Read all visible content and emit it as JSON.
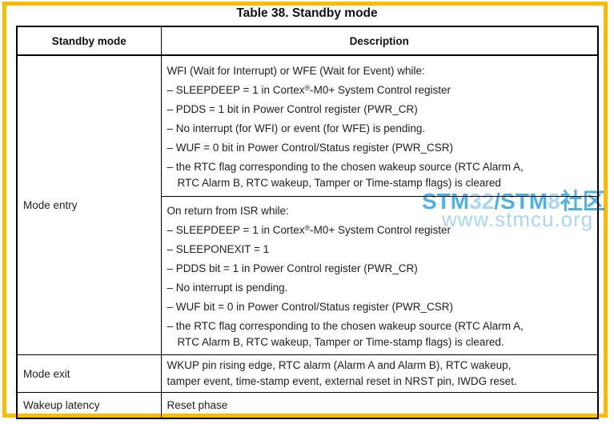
{
  "page": {
    "title": "Table 38. Standby mode",
    "frame_color": "#FDBB00",
    "watermark": {
      "seg1": "STM",
      "seg2": "32",
      "seg3": "/",
      "seg4": "STM",
      "seg5": "8",
      "seg6": "社区",
      "line2": "www.stmcu.org",
      "color_strong": "#4FB1E6",
      "color_light": "#A9D6F0"
    }
  },
  "table": {
    "header": {
      "col1": "Standby mode",
      "col2": "Description"
    },
    "mode_entry": {
      "label": "Mode entry",
      "block1": {
        "intro": "WFI (Wait for Interrupt) or WFE (Wait for Event) while:",
        "item1": {
          "pre": "– SLEEPDEEP = 1 in Cortex",
          "sup": "®",
          "post": "-M0+ System Control register"
        },
        "item2": "– PDDS = 1 bit in Power Control register (PWR_CR)",
        "item3": "– No interrupt (for WFI) or event (for WFE) is pending.",
        "item4": "– WUF = 0 bit in Power Control/Status register (PWR_CSR)",
        "item5_line1": "– the RTC flag corresponding to the chosen wakeup source (RTC Alarm A,",
        "item5_line2": "RTC Alarm B, RTC wakeup, Tamper or Time-stamp flags) is cleared"
      },
      "block2": {
        "intro": "On return from ISR while:",
        "item1": {
          "pre": "– SLEEPDEEP = 1 in Cortex",
          "sup": "®",
          "post": "-M0+ System Control register"
        },
        "item2": "– SLEEPONEXIT = 1",
        "item3": "– PDDS bit = 1 in Power Control register (PWR_CR)",
        "item4": "– No interrupt is pending.",
        "item5": "– WUF bit = 0 in Power Control/Status register (PWR_CSR)",
        "item6_line1": "– the RTC flag corresponding to the chosen wakeup source (RTC Alarm A,",
        "item6_line2": "RTC Alarm B, RTC wakeup, Tamper or Time-stamp flags) is cleared."
      }
    },
    "mode_exit": {
      "label": "Mode exit",
      "line1": "WKUP pin rising edge, RTC alarm (Alarm A and Alarm B), RTC wakeup,",
      "line2": "tamper event, time-stamp event, external reset in NRST pin, IWDG reset."
    },
    "wakeup_latency": {
      "label": "Wakeup latency",
      "value": "Reset phase"
    }
  }
}
